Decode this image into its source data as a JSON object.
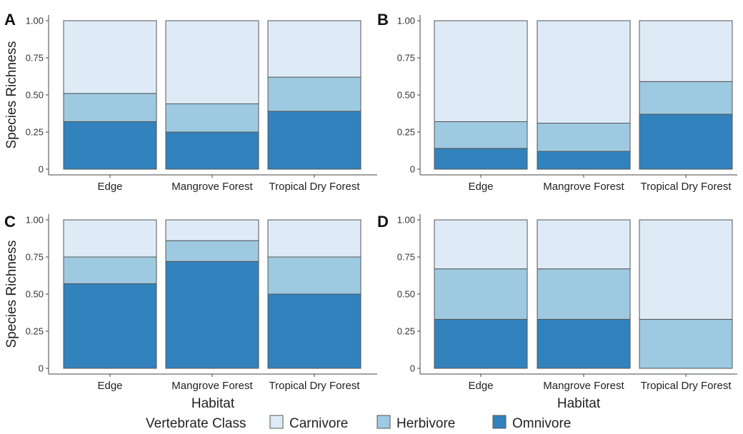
{
  "chart_data": [
    {
      "type": "bar",
      "stacked": true,
      "panel_label": "A",
      "categories": [
        "Edge",
        "Mangrove Forest",
        "Tropical Dry Forest"
      ],
      "series": [
        {
          "name": "Omnivore",
          "values": [
            0.32,
            0.25,
            0.39
          ]
        },
        {
          "name": "Herbivore",
          "values": [
            0.19,
            0.19,
            0.23
          ]
        },
        {
          "name": "Carnivore",
          "values": [
            0.49,
            0.56,
            0.38
          ]
        }
      ],
      "ylabel": "Species Richness",
      "xlabel": "",
      "ylim": [
        0,
        1
      ],
      "yticks": [
        "0",
        "0.25",
        "0.50",
        "0.75",
        "1.00"
      ]
    },
    {
      "type": "bar",
      "stacked": true,
      "panel_label": "B",
      "categories": [
        "Edge",
        "Mangrove Forest",
        "Tropical Dry Forest"
      ],
      "series": [
        {
          "name": "Omnivore",
          "values": [
            0.14,
            0.12,
            0.37
          ]
        },
        {
          "name": "Herbivore",
          "values": [
            0.18,
            0.19,
            0.22
          ]
        },
        {
          "name": "Carnivore",
          "values": [
            0.68,
            0.69,
            0.41
          ]
        }
      ],
      "ylabel": "",
      "xlabel": "",
      "ylim": [
        0,
        1
      ],
      "yticks": [
        "0",
        "0.25",
        "0.50",
        "0.75",
        "1.00"
      ]
    },
    {
      "type": "bar",
      "stacked": true,
      "panel_label": "C",
      "categories": [
        "Edge",
        "Mangrove Forest",
        "Tropical Dry Forest"
      ],
      "series": [
        {
          "name": "Omnivore",
          "values": [
            0.57,
            0.72,
            0.5
          ]
        },
        {
          "name": "Herbivore",
          "values": [
            0.18,
            0.14,
            0.25
          ]
        },
        {
          "name": "Carnivore",
          "values": [
            0.25,
            0.14,
            0.25
          ]
        }
      ],
      "ylabel": "Species Richness",
      "xlabel": "Habitat",
      "ylim": [
        0,
        1
      ],
      "yticks": [
        "0",
        "0.25",
        "0.50",
        "0.75",
        "1.00"
      ]
    },
    {
      "type": "bar",
      "stacked": true,
      "panel_label": "D",
      "categories": [
        "Edge",
        "Mangrove Forest",
        "Tropical Dry Forest"
      ],
      "series": [
        {
          "name": "Omnivore",
          "values": [
            0.33,
            0.33,
            0.0
          ]
        },
        {
          "name": "Herbivore",
          "values": [
            0.34,
            0.34,
            0.33
          ]
        },
        {
          "name": "Carnivore",
          "values": [
            0.33,
            0.33,
            0.67
          ]
        }
      ],
      "ylabel": "",
      "xlabel": "Habitat",
      "ylim": [
        0,
        1
      ],
      "yticks": [
        "0",
        "0.25",
        "0.50",
        "0.75",
        "1.00"
      ]
    }
  ],
  "legend": {
    "title": "Vertebrate Class",
    "placement": "bottom",
    "entries": [
      {
        "name": "Carnivore",
        "color": "#deebf7"
      },
      {
        "name": "Herbivore",
        "color": "#9ecae1"
      },
      {
        "name": "Omnivore",
        "color": "#3182bd"
      }
    ]
  },
  "colors": {
    "Carnivore": "#deebf7",
    "Herbivore": "#9ecae1",
    "Omnivore": "#3182bd",
    "bar_outline": "#555555",
    "axis": "#444444"
  }
}
